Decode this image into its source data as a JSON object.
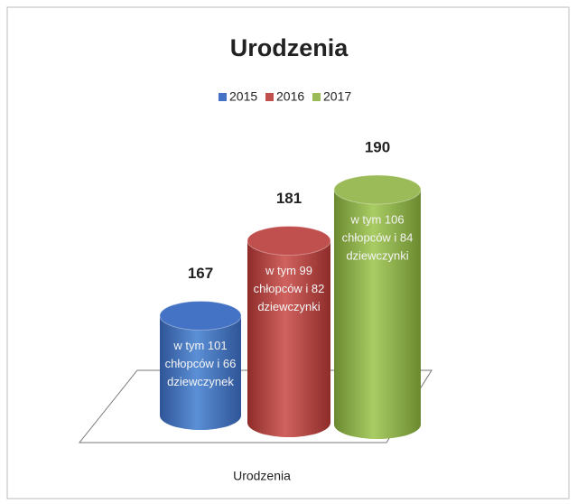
{
  "chart_data": {
    "type": "bar",
    "title": "Urodzenia",
    "categories": [
      "Urodzenia"
    ],
    "series": [
      {
        "name": "2015",
        "color": "#4472c4",
        "values": [
          167
        ]
      },
      {
        "name": "2016",
        "color": "#c0504d",
        "values": [
          181
        ]
      },
      {
        "name": "2017",
        "color": "#9bbb59",
        "values": [
          190
        ]
      }
    ],
    "annotations": [
      [
        "w tym 101",
        "chłopców i 66",
        "dziewczynek"
      ],
      [
        "w tym 99",
        "chłopców i 82",
        "dziewczynki"
      ],
      [
        "w tym 106",
        "chłopców i 84",
        "dziewczynki"
      ]
    ],
    "ylim": [
      150,
      200
    ],
    "legend": "top"
  }
}
